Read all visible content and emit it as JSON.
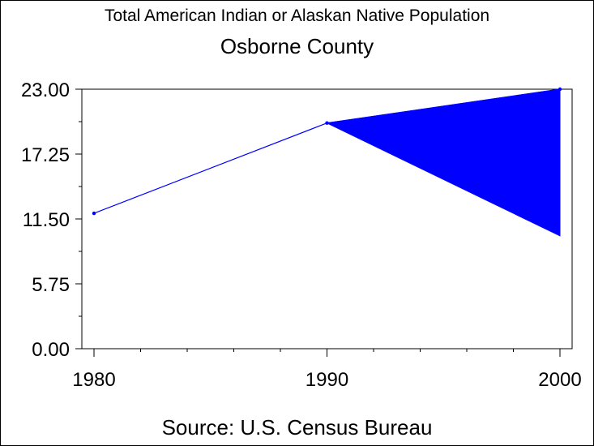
{
  "title": "Total American Indian or Alaskan Native Population",
  "subtitle": "Osborne County",
  "source": "Source: U.S. Census Bureau",
  "chart_data": {
    "type": "area",
    "title": "Total American Indian or Alaskan Native Population",
    "subtitle": "Osborne County",
    "xlabel": "",
    "ylabel": "",
    "x": [
      1980,
      1990,
      2000
    ],
    "series": [
      {
        "values": [
          12,
          20,
          23
        ],
        "color": "#0000ff"
      }
    ],
    "band_2000_lower": 10,
    "xlim": [
      1980,
      2000
    ],
    "ylim": [
      0,
      23
    ],
    "x_ticks": [
      "1980",
      "1990",
      "2000"
    ],
    "y_ticks": [
      "0.00",
      "5.75",
      "11.50",
      "17.25",
      "23.00"
    ],
    "grid": false,
    "legend": "none"
  }
}
